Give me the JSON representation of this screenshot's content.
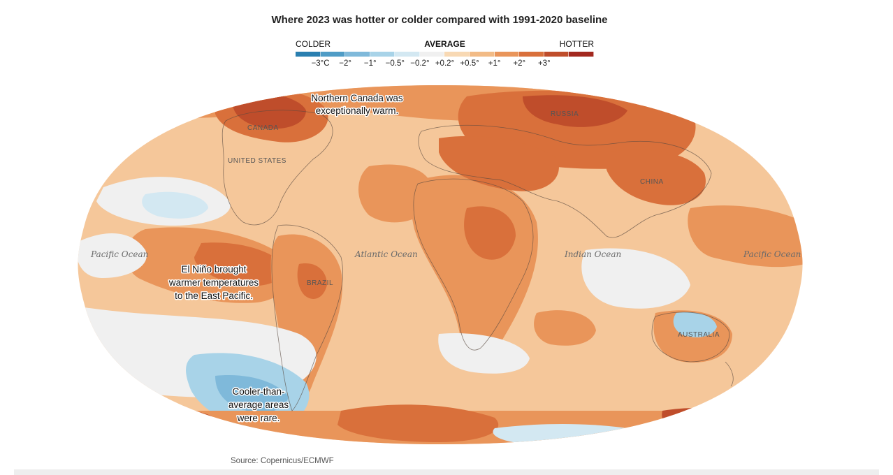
{
  "title": "Where 2023 was hotter or colder compared with 1991-2020 baseline",
  "legend": {
    "colder_label": "COLDER",
    "average_label": "AVERAGE",
    "hotter_label": "HOTTER",
    "colors": [
      "#2a7fb0",
      "#4f9cc6",
      "#7fb9da",
      "#a8d3e8",
      "#d3e8f2",
      "#f0f0f0",
      "#f8d9b4",
      "#f2bb86",
      "#e9955a",
      "#d9703b",
      "#bf4d2b",
      "#a3281f"
    ],
    "ticks": [
      "-3°C",
      "-2°",
      "-1°",
      "-0.5°",
      "-0.2°",
      "+0.2°",
      "+0.5°",
      "+1°",
      "+2°",
      "+3°"
    ]
  },
  "ocean_labels": {
    "pacific_west": "Pacific Ocean",
    "atlantic": "Atlantic Ocean",
    "indian": "Indian Ocean",
    "pacific_east": "Pacific Ocean"
  },
  "country_labels": {
    "canada": "CANADA",
    "united_states": "UNITED STATES",
    "brazil": "BRAZIL",
    "russia": "RUSSIA",
    "china": "CHINA",
    "australia": "AUSTRALIA"
  },
  "annotations": {
    "canada_line1": "Northern Canada was",
    "canada_line2": "exceptionally warm.",
    "elnino_line1": "El Niño brought",
    "elnino_line2": "warmer temperatures",
    "elnino_line3": "to the East Pacific.",
    "cooler_line1": "Cooler-than-",
    "cooler_line2": "average areas",
    "cooler_line3": "were rare."
  },
  "source": "Source: Copernicus/ECMWF"
}
